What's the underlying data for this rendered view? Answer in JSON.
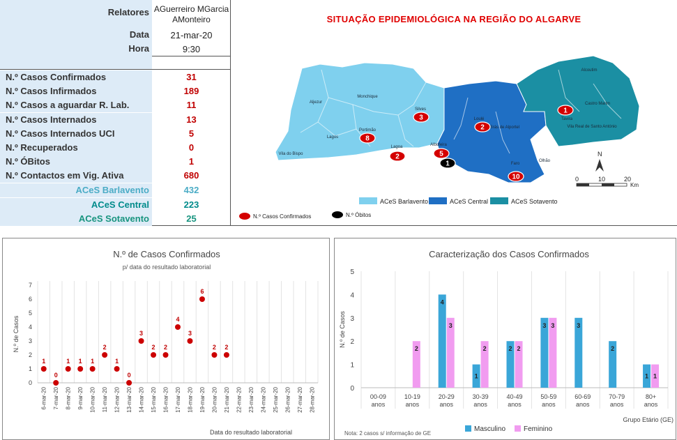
{
  "header": {
    "relatores_label": "Relatores",
    "relatores_line1": "AGuerreiro MGarcia",
    "relatores_line2": "AMonteiro",
    "data_label": "Data",
    "data_value": "21-mar-20",
    "hora_label": "Hora",
    "hora_value": "9:30"
  },
  "stats": [
    {
      "label": "N.º Casos Confirmados",
      "value": "31"
    },
    {
      "label": "N.º Casos Infirmados",
      "value": "189"
    },
    {
      "label": "N.º Casos a aguardar R. Lab.",
      "value": "11"
    },
    {
      "label": "N.º Casos Internados",
      "value": "13"
    },
    {
      "label": "N.º Casos Internados UCI",
      "value": "5"
    },
    {
      "label": "N.º Recuperados",
      "value": "0"
    },
    {
      "label": "N.º ÓBitos",
      "value": "1"
    },
    {
      "label": "N.º Contactos em Vig. Ativa",
      "value": "680"
    }
  ],
  "aces": [
    {
      "label": "ACeS Barlavento",
      "value": "432",
      "color": "#4bacc6"
    },
    {
      "label": "ACeS Central",
      "value": "223",
      "color": "#008b8b"
    },
    {
      "label": "ACeS Sotavento",
      "value": "25",
      "color": "#17947f"
    }
  ],
  "map": {
    "title": "SITUAÇÃO EPIDEMIOLÓGICA NA REGIÃO DO ALGARVE",
    "places": [
      {
        "name": "Alcoutim"
      },
      {
        "name": "Aljezur"
      },
      {
        "name": "Monchique"
      },
      {
        "name": "Silves"
      },
      {
        "name": "Loulé"
      },
      {
        "name": "S.Brás de Alportel"
      },
      {
        "name": "Castro Marim"
      },
      {
        "name": "Tavira"
      },
      {
        "name": "Vila Real de Santo António"
      },
      {
        "name": "Portimão"
      },
      {
        "name": "Lagos"
      },
      {
        "name": "Lagoa"
      },
      {
        "name": "Albufeira"
      },
      {
        "name": "Olhão"
      },
      {
        "name": "Faro"
      },
      {
        "name": "Vila do Bispo"
      }
    ],
    "markers": [
      {
        "label": "3",
        "type": "confirmed"
      },
      {
        "label": "2",
        "type": "confirmed"
      },
      {
        "label": "1",
        "type": "confirmed"
      },
      {
        "label": "8",
        "type": "confirmed"
      },
      {
        "label": "2",
        "type": "confirmed"
      },
      {
        "label": "5",
        "type": "confirmed"
      },
      {
        "label": "1",
        "type": "death"
      },
      {
        "label": "10",
        "type": "confirmed"
      }
    ],
    "legend": {
      "barlavento": "ACeS Barlavento",
      "central": "ACeS Central",
      "sotavento": "ACeS Sotavento",
      "confirmados": "N.º Casos Confirmados",
      "obitos": "N.º Óbitos"
    },
    "north_label": "N",
    "scale": {
      "t0": "0",
      "t10": "10",
      "t20": "20",
      "unit": "Km"
    },
    "colors": {
      "barlavento": "#7fd0ee",
      "central": "#1f6fc4",
      "sotavento": "#1b8fa3"
    }
  },
  "chart_data": [
    {
      "type": "scatter",
      "title": "N.º de Casos Confirmados",
      "subtitle": "p/ data do resultado laboratorial",
      "xlabel": "Data do resultado laboratorial",
      "ylabel": "N.º de Casos",
      "ylim": [
        0,
        7
      ],
      "yticks": [
        "0",
        "1",
        "2",
        "3",
        "4",
        "5",
        "6",
        "7"
      ],
      "categories": [
        "6-mar-20",
        "7-mar-20",
        "8-mar-20",
        "9-mar-20",
        "10-mar-20",
        "11-mar-20",
        "12-mar-20",
        "13-mar-20",
        "14-mar-20",
        "15-mar-20",
        "16-mar-20",
        "17-mar-20",
        "18-mar-20",
        "19-mar-20",
        "20-mar-20",
        "21-mar-20",
        "22-mar-20",
        "23-mar-20",
        "24-mar-20",
        "25-mar-20",
        "26-mar-20",
        "27-mar-20",
        "28-mar-20"
      ],
      "values": [
        1,
        0,
        1,
        1,
        1,
        2,
        1,
        0,
        3,
        2,
        2,
        4,
        3,
        6,
        2,
        2,
        null,
        null,
        null,
        null,
        null,
        null,
        null
      ],
      "marker_color": "#cc0000",
      "grid": "vertical"
    },
    {
      "type": "bar",
      "title": "Caracterização dos Casos Confirmados",
      "xlabel": "Grupo Etário (GE)",
      "ylabel": "N.º de Casos",
      "ylim": [
        0,
        5
      ],
      "yticks": [
        "0",
        "1",
        "2",
        "3",
        "4",
        "5"
      ],
      "categories": [
        "00-09 anos",
        "10-19 anos",
        "20-29 anos",
        "30-39 anos",
        "40-49 anos",
        "50-59 anos",
        "60-69 anos",
        "70-79 anos",
        "80+ anos"
      ],
      "series": [
        {
          "name": "Masculino",
          "values": [
            0,
            0,
            4,
            1,
            2,
            3,
            3,
            2,
            1
          ],
          "color": "#3aa6d8"
        },
        {
          "name": "Feminino",
          "values": [
            0,
            2,
            3,
            2,
            2,
            3,
            0,
            0,
            1
          ],
          "color": "#f19cf0"
        }
      ],
      "note": "Nota: 2 casos s/ informação de GE",
      "legend_position": "bottom"
    }
  ]
}
